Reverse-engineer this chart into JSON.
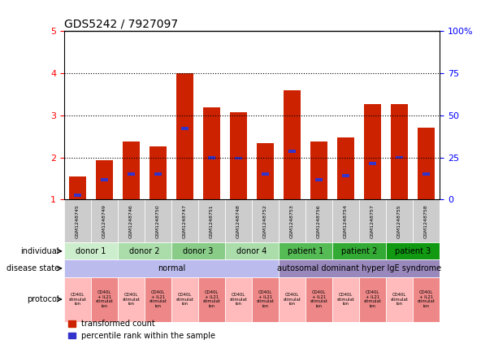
{
  "title": "GDS5242 / 7927097",
  "samples": [
    "GSM1248745",
    "GSM1248749",
    "GSM1248746",
    "GSM1248750",
    "GSM1248747",
    "GSM1248751",
    "GSM1248748",
    "GSM1248752",
    "GSM1248753",
    "GSM1248756",
    "GSM1248754",
    "GSM1248757",
    "GSM1248755",
    "GSM1248758"
  ],
  "red_values": [
    1.55,
    1.93,
    2.37,
    2.27,
    4.0,
    3.18,
    3.07,
    2.33,
    3.6,
    2.37,
    2.47,
    3.27,
    3.27,
    2.7
  ],
  "blue_values": [
    1.1,
    1.47,
    1.6,
    1.6,
    2.68,
    1.99,
    1.98,
    1.6,
    2.15,
    1.47,
    1.57,
    1.85,
    2.0,
    1.6
  ],
  "ylim_left": [
    1,
    5
  ],
  "ylim_right": [
    0,
    100
  ],
  "yticks_left": [
    1,
    2,
    3,
    4,
    5
  ],
  "yticks_right": [
    0,
    25,
    50,
    75,
    100
  ],
  "bar_color": "#cc2200",
  "blue_color": "#3333cc",
  "ind_groups": [
    {
      "label": "donor 1",
      "start": 0,
      "end": 1,
      "color": "#cceecc"
    },
    {
      "label": "donor 2",
      "start": 2,
      "end": 3,
      "color": "#aaddaa"
    },
    {
      "label": "donor 3",
      "start": 4,
      "end": 5,
      "color": "#88cc88"
    },
    {
      "label": "donor 4",
      "start": 6,
      "end": 7,
      "color": "#aaddaa"
    },
    {
      "label": "patient 1",
      "start": 8,
      "end": 9,
      "color": "#55bb55"
    },
    {
      "label": "patient 2",
      "start": 10,
      "end": 11,
      "color": "#33aa33"
    },
    {
      "label": "patient 3",
      "start": 12,
      "end": 13,
      "color": "#119911"
    }
  ],
  "dis_groups": [
    {
      "label": "normal",
      "start": 0,
      "end": 7,
      "color": "#bbbbee"
    },
    {
      "label": "autosomal dominant hyper IgE syndrome",
      "start": 8,
      "end": 13,
      "color": "#9988bb"
    }
  ],
  "proto_labels": [
    "CD40L\nstimulat\nion",
    "CD40L\n+ IL21\nstimulat\nion",
    "CD40L\nstimulat\nion",
    "CD40L\n+ IL21\nstimulat\nion",
    "CD40L\nstimulat\nion",
    "CD40L\n+ IL21\nstimulat\nion",
    "CD40L\nstimulat\nion",
    "CD40L\n+ IL21\nstimulat\nion",
    "CD40L\nstimulat\nion",
    "CD40L\n+ IL21\nstimulat\nion",
    "CD40L\nstimulat\nion",
    "CD40L\n+ IL21\nstimulat\nion",
    "CD40L\nstimulat\nion",
    "CD40L\n+ IL21\nstimulat\nion"
  ],
  "proto_colors": [
    "#ffbbbb",
    "#ee8888",
    "#ffbbbb",
    "#ee8888",
    "#ffbbbb",
    "#ee8888",
    "#ffbbbb",
    "#ee8888",
    "#ffbbbb",
    "#ee8888",
    "#ffbbbb",
    "#ee8888",
    "#ffbbbb",
    "#ee8888"
  ],
  "sample_box_color": "#cccccc",
  "fig_width": 6.08,
  "fig_height": 4.23,
  "dpi": 100
}
